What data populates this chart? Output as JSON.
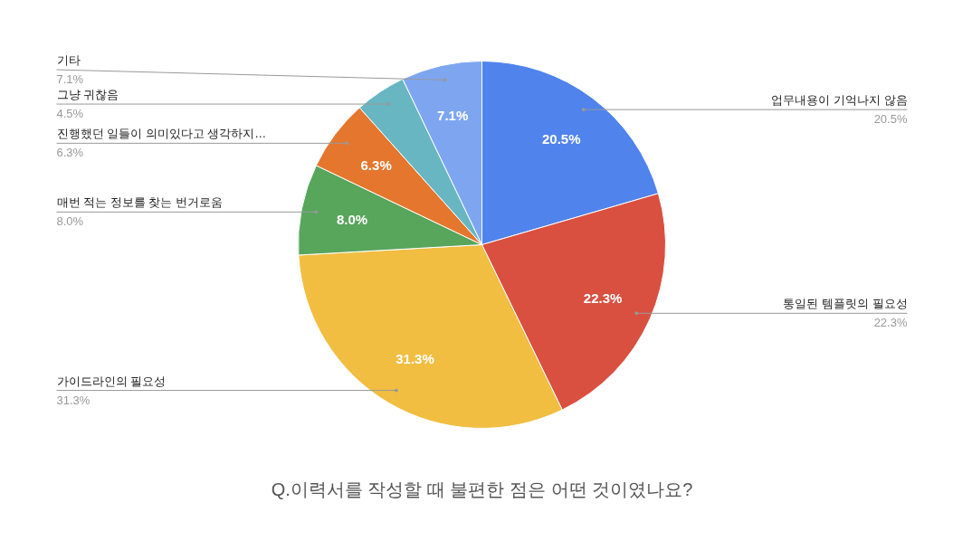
{
  "chart_data": {
    "type": "pie",
    "title": "Q.이력서를 작성할 때 불편한 점은 어떤 것이였나요?",
    "categories": [
      "업무내용이 기억나지 않음",
      "통일된 템플릿의 필요성",
      "가이드라인의 필요성",
      "매번 적는 정보를 찾는 번거로움",
      "진행했던 일들이 의미있다고 생각하지…",
      "그냥 귀찮음",
      "기타"
    ],
    "values": [
      20.5,
      22.3,
      31.3,
      8.0,
      6.3,
      4.5,
      7.1
    ],
    "colors": [
      "#5083ec",
      "#d95040",
      "#f1be42",
      "#58a55c",
      "#e5762d",
      "#67b6c2",
      "#7ea6f0"
    ],
    "value_labels": [
      "20.5%",
      "22.3%",
      "31.3%",
      "8.0%",
      "6.3%",
      "4.5%",
      "7.1%"
    ]
  }
}
